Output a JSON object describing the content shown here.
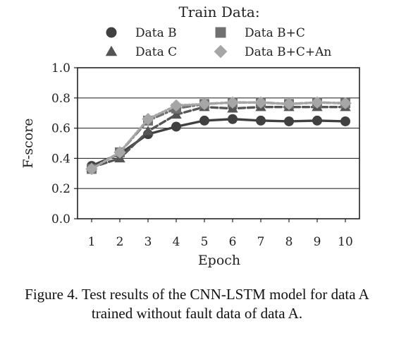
{
  "chart_data": {
    "type": "line",
    "legend_title": "Train Data:",
    "xlabel": "Epoch",
    "ylabel": "F-score",
    "x": [
      1,
      2,
      3,
      4,
      5,
      6,
      7,
      8,
      9,
      10
    ],
    "xticks": [
      "1",
      "2",
      "3",
      "4",
      "5",
      "6",
      "7",
      "8",
      "9",
      "10"
    ],
    "yticks": [
      "0.0",
      "0.2",
      "0.4",
      "0.6",
      "0.8",
      "1.0"
    ],
    "ylim": [
      0,
      1.0
    ],
    "grid": "horizontal",
    "legend_position": "top",
    "series": [
      {
        "name": "Data B",
        "marker": "circle",
        "line_style": "solid",
        "color": "#404040",
        "values": [
          0.35,
          0.43,
          0.56,
          0.61,
          0.65,
          0.66,
          0.65,
          0.645,
          0.65,
          0.645
        ]
      },
      {
        "name": "Data C",
        "marker": "triangle",
        "line_style": "dashed",
        "color": "#555555",
        "values": [
          0.34,
          0.4,
          0.58,
          0.69,
          0.74,
          0.73,
          0.74,
          0.74,
          0.74,
          0.74
        ]
      },
      {
        "name": "Data B+C",
        "marker": "square",
        "line_style": "dash-dot",
        "color": "#707070",
        "values": [
          0.33,
          0.44,
          0.65,
          0.73,
          0.76,
          0.77,
          0.77,
          0.76,
          0.77,
          0.765
        ]
      },
      {
        "name": "Data B+C+An",
        "marker": "diamond",
        "line_style": "dotted",
        "color": "#a6a6a6",
        "values": [
          0.33,
          0.44,
          0.66,
          0.75,
          0.76,
          0.77,
          0.77,
          0.76,
          0.77,
          0.765
        ]
      }
    ]
  },
  "caption": {
    "line1": "Figure 4. Test results of the CNN-LSTM model for data A",
    "line2": "trained without fault data of data A."
  }
}
